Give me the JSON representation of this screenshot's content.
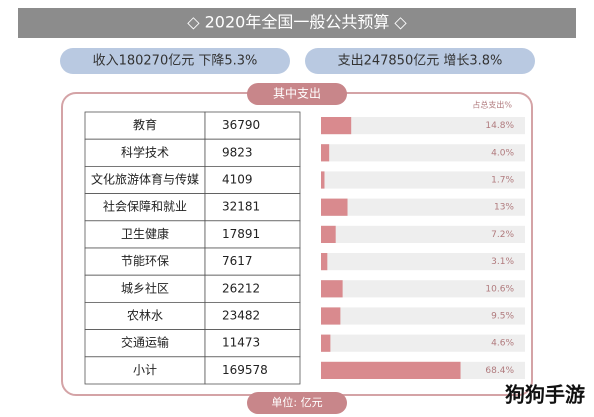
{
  "header": {
    "title": "◇ 2020年全国一般公共预算 ◇",
    "income": "收入180270亿元  下降5.3%",
    "expense": "支出247850亿元  增长3.8%"
  },
  "section": {
    "title": "其中支出",
    "percent_header": "占总支出%",
    "unit": "单位: 亿元",
    "rows": [
      {
        "name": "教育",
        "amount": 36790,
        "share": 14.8,
        "share_label": "14.8%"
      },
      {
        "name": "科学技术",
        "amount": 9823,
        "share": 4.0,
        "share_label": "4.0%"
      },
      {
        "name": "文化旅游体育与传媒",
        "amount": 4109,
        "share": 1.7,
        "share_label": "1.7%"
      },
      {
        "name": "社会保障和就业",
        "amount": 32181,
        "share": 13,
        "share_label": "13%"
      },
      {
        "name": "卫生健康",
        "amount": 17891,
        "share": 7.2,
        "share_label": "7.2%"
      },
      {
        "name": "节能环保",
        "amount": 7617,
        "share": 3.1,
        "share_label": "3.1%"
      },
      {
        "name": "城乡社区",
        "amount": 26212,
        "share": 10.6,
        "share_label": "10.6%"
      },
      {
        "name": "农林水",
        "amount": 23482,
        "share": 9.5,
        "share_label": "9.5%"
      },
      {
        "name": "交通运输",
        "amount": 11473,
        "share": 4.6,
        "share_label": "4.6%"
      },
      {
        "name": "小计",
        "amount": 169578,
        "share": 68.4,
        "share_label": "68.4%"
      }
    ]
  },
  "watermark": "狗狗手游"
}
